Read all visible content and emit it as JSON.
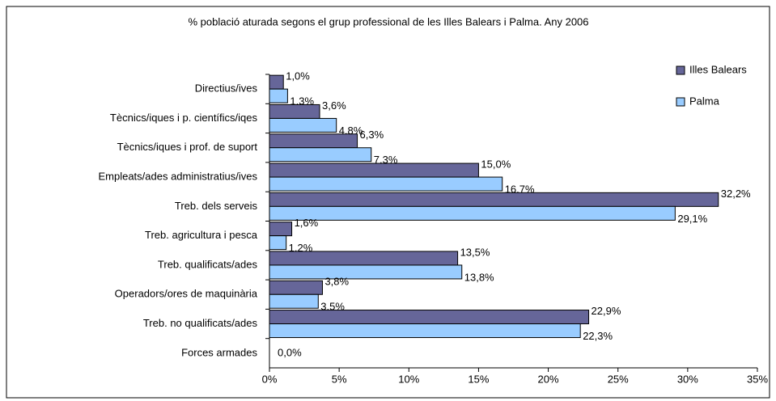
{
  "chart_data": {
    "type": "hbar",
    "title": "% població aturada segons el grup professional de les Illes Balears i Palma. Any 2006",
    "categories": [
      "Directius/ives",
      "Tècnics/iques i p. científics/iqes",
      "Tècnics/iques i prof. de suport",
      "Empleats/ades administratius/ives",
      "Treb. dels serveis",
      "Treb. agricultura i pesca",
      "Treb. qualificats/ades",
      "Operadors/ores de maquinària",
      "Treb. no qualificats/ades",
      "Forces armades"
    ],
    "series": [
      {
        "name": "Illes Balears",
        "color": "#666699",
        "values": [
          1.0,
          3.6,
          6.3,
          15.0,
          32.2,
          1.6,
          13.5,
          3.8,
          22.9,
          0.0
        ],
        "value_labels": [
          "1,0%",
          "3,6%",
          "6,3%",
          "15,0%",
          "32,2%",
          "1,6%",
          "13,5%",
          "3,8%",
          "22,9%",
          "0,0%"
        ]
      },
      {
        "name": "Palma",
        "color": "#99ccff",
        "values": [
          1.3,
          4.8,
          7.3,
          16.7,
          29.1,
          1.2,
          13.8,
          3.5,
          22.3,
          null
        ],
        "value_labels": [
          "1,3%",
          "4,8%",
          "7,3%",
          "16,7%",
          "29,1%",
          "1,2%",
          "13,8%",
          "3,5%",
          "22,3%",
          null
        ]
      }
    ],
    "xlim": [
      0,
      35
    ],
    "xticks": [
      {
        "value": 0,
        "label": "0%"
      },
      {
        "value": 5,
        "label": "5%"
      },
      {
        "value": 10,
        "label": "10%"
      },
      {
        "value": 15,
        "label": "15%"
      },
      {
        "value": 20,
        "label": "20%"
      },
      {
        "value": 25,
        "label": "25%"
      },
      {
        "value": 30,
        "label": "30%"
      },
      {
        "value": 35,
        "label": "35%"
      }
    ],
    "legend": "top-right",
    "grid": false
  }
}
